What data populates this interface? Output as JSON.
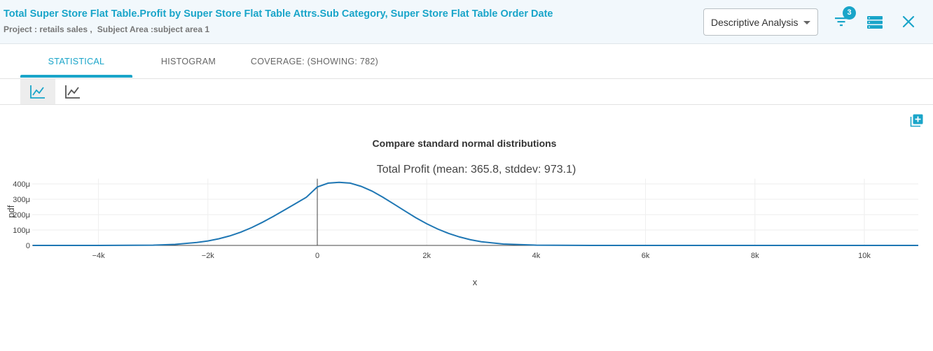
{
  "header": {
    "title": "Total Super Store Flat Table.Profit by Super Store Flat Table Attrs.Sub Category, Super Store Flat Table Order Date",
    "project_label": "Project : retails sales ,",
    "subject_area_label": "Subject Area :subject area 1",
    "analysis_dropdown": "Descriptive Analysis",
    "filter_count": "3",
    "accent_color": "#1aa5c9"
  },
  "tabs": [
    {
      "label": "STATISTICAL",
      "active": true
    },
    {
      "label": "HISTOGRAM",
      "active": false
    },
    {
      "label": "COVERAGE: (SHOWING: 782)",
      "active": false
    }
  ],
  "toolbar": {
    "icons": [
      "line-chart-icon",
      "line-chart-icon"
    ],
    "active_index": 0
  },
  "chart_data": {
    "type": "line",
    "title": "Compare standard normal distributions",
    "subtitle": "Total Profit (mean: 365.8, stddev: 973.1)",
    "xlabel": "x",
    "ylabel": "pdf",
    "mean": 365.8,
    "stddev": 973.1,
    "xlim": [
      -5200,
      11000
    ],
    "ylim": [
      0,
      420
    ],
    "x_ticks": [
      -4000,
      -2000,
      0,
      2000,
      4000,
      6000,
      8000,
      10000
    ],
    "x_tick_labels": [
      "−4k",
      "−2k",
      "0",
      "2k",
      "4k",
      "6k",
      "8k",
      "10k"
    ],
    "y_ticks": [
      0,
      100,
      200,
      300,
      400
    ],
    "y_tick_labels": [
      "0",
      "100μ",
      "200μ",
      "300μ",
      "400μ"
    ],
    "grid": true,
    "series": [
      {
        "color": "#1f77b4",
        "x": [
          -5200,
          -4000,
          -3000,
          -2600,
          -2200,
          -2000,
          -1800,
          -1600,
          -1400,
          -1200,
          -1000,
          -800,
          -600,
          -400,
          -200,
          0,
          200,
          400,
          600,
          800,
          1000,
          1200,
          1400,
          1600,
          1800,
          2000,
          2200,
          2400,
          2600,
          2800,
          3000,
          3400,
          4000,
          5000,
          11000
        ],
        "y": [
          0,
          0,
          2,
          7,
          19,
          29,
          43,
          62,
          86,
          116,
          151,
          189,
          230,
          272,
          313,
          380,
          405,
          410,
          405,
          384,
          353,
          313,
          269,
          224,
          180,
          141,
          107,
          78,
          55,
          37,
          24,
          9,
          2,
          0,
          0
        ]
      }
    ]
  }
}
